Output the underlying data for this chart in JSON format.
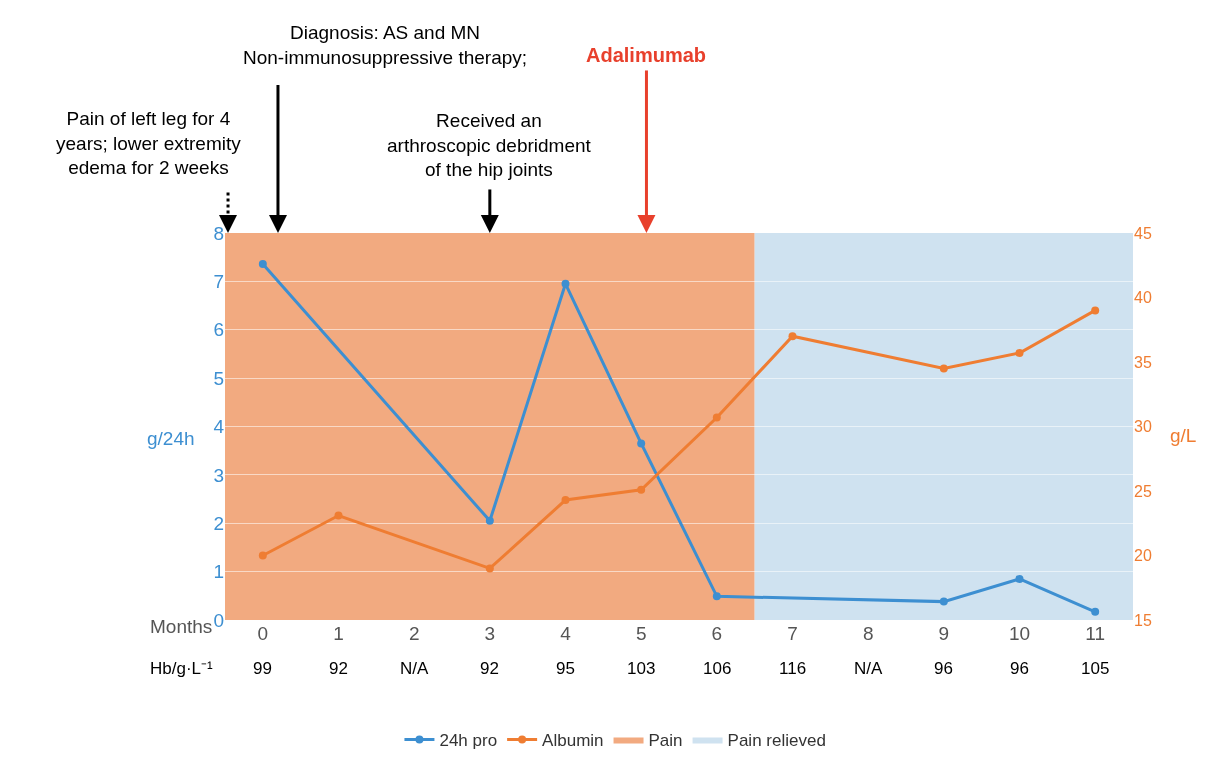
{
  "chart_data": {
    "type": "line",
    "xlabel": "Months",
    "ylabel": "g/24h",
    "y2label": "g/L",
    "xlim": [
      -0.5,
      11.5
    ],
    "xticks": [
      0,
      1,
      2,
      3,
      4,
      5,
      6,
      7,
      8,
      9,
      10,
      11
    ],
    "ylim": [
      0,
      8
    ],
    "yticks": [
      0,
      1,
      2,
      3,
      4,
      5,
      6,
      7,
      8
    ],
    "y2lim": [
      15,
      45
    ],
    "y2ticks": [
      15,
      20,
      25,
      30,
      35,
      40,
      45
    ],
    "series": [
      {
        "name": "24h pro",
        "color": "#3d8fd1",
        "x": [
          0,
          3,
          4,
          5,
          6,
          9,
          10,
          11
        ],
        "values": [
          7.36,
          2.05,
          6.95,
          3.65,
          0.49,
          0.38,
          0.85,
          0.17
        ]
      },
      {
        "name": "Albumin",
        "color": "#ef7d32",
        "axis": "y2",
        "x": [
          0,
          1,
          3,
          4,
          5,
          6,
          7,
          9,
          10,
          11
        ],
        "values": [
          20.0,
          23.1,
          19.0,
          24.3,
          25.1,
          30.7,
          37.0,
          34.5,
          35.7,
          39.0
        ]
      }
    ],
    "bands": [
      {
        "axis": "x",
        "from": -0.5,
        "to": 6.5,
        "label": "Pain",
        "color": "#f2aa80"
      },
      {
        "axis": "x",
        "from": 6.5,
        "to": 11.5,
        "label": "Pain relieved",
        "color": "#cfe2f0"
      }
    ],
    "ref_lines": [
      {
        "axis": "x",
        "value": -0.46,
        "label": "Pain of left leg for 4\nyears; lower extremity\nedema for 2 weeks",
        "color": "#000000",
        "line_style": "dotted"
      },
      {
        "axis": "x",
        "value": 0.2,
        "label": "Diagnosis: AS and MN\nNon-immunosuppressive therapy;",
        "color": "#000000",
        "line_style": "solid"
      },
      {
        "axis": "x",
        "value": 3.0,
        "label": "Received an\narthroscopic debridment\nof the hip joints",
        "color": "#000000",
        "line_style": "solid"
      },
      {
        "axis": "x",
        "value": 5.07,
        "label": "Adalimumab",
        "color": "#e8402c",
        "line_style": "solid"
      }
    ],
    "annotations": [
      "Hb/g·L⁻¹",
      "99",
      "92",
      "N/A",
      "92",
      "95",
      "103",
      "106",
      "116",
      "N/A",
      "96",
      "96",
      "105"
    ],
    "grid": "y",
    "marker": "circle",
    "line_style": "solid",
    "legend": "bottom"
  }
}
